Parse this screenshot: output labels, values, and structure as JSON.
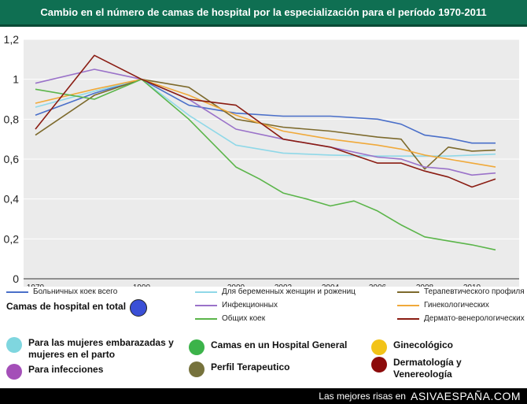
{
  "title": "Cambio en el número de camas de hospital por la especialización para el período 1970-2011",
  "chart_data": {
    "type": "line",
    "ylim": [
      0,
      1.2
    ],
    "xlim": [
      1969,
      2011
    ],
    "yticks": [
      "0",
      "0,2",
      "0,4",
      "0,6",
      "0,8",
      "1",
      "1,2"
    ],
    "ytick_values": [
      0,
      0.2,
      0.4,
      0.6,
      0.8,
      1.0,
      1.2
    ],
    "xticks": [
      {
        "value": 1970,
        "label": "1970"
      },
      {
        "value": 1990,
        "label": "1990"
      },
      {
        "value": 2000,
        "label": "2000"
      },
      {
        "value": 2002,
        "label": "2002"
      },
      {
        "value": 2004,
        "label": "2004"
      },
      {
        "value": 2006,
        "label": "2006"
      },
      {
        "value": 2008,
        "label": "2008"
      },
      {
        "value": 2010,
        "label": "2010"
      }
    ],
    "x_positions": {
      "1970": 1970,
      "1980": 1975,
      "1990": 1979,
      "1995": 1983,
      "2000": 1987,
      "2001": 1989,
      "2002": 1991,
      "2003": 1993,
      "2004": 1995,
      "2005": 1997,
      "2006": 1999,
      "2007": 2001,
      "2008": 2003,
      "2009": 2005,
      "2010": 2007,
      "2011": 2009
    },
    "series": [
      {
        "name": "Больничных коек всего",
        "color": "#4a6fc9",
        "x": [
          1970,
          1980,
          1990,
          1995,
          2000,
          2002,
          2004,
          2006,
          2007,
          2008,
          2009,
          2010,
          2011
        ],
        "y": [
          0.82,
          0.93,
          1.0,
          0.87,
          0.83,
          0.815,
          0.815,
          0.8,
          0.775,
          0.72,
          0.705,
          0.68,
          0.68
        ]
      },
      {
        "name": "Для беременных женщин и рожениц",
        "color": "#8fd8e8",
        "x": [
          1970,
          1980,
          1990,
          1995,
          2000,
          2002,
          2004,
          2006,
          2007,
          2008,
          2009,
          2010,
          2011
        ],
        "y": [
          0.86,
          0.94,
          1.0,
          0.82,
          0.67,
          0.63,
          0.62,
          0.615,
          0.615,
          0.615,
          0.615,
          0.62,
          0.625
        ]
      },
      {
        "name": "Терапевтического профиля",
        "color": "#7d6a2c",
        "x": [
          1970,
          1980,
          1990,
          1995,
          2000,
          2002,
          2004,
          2006,
          2007,
          2008,
          2009,
          2010,
          2011
        ],
        "y": [
          0.72,
          0.92,
          1.0,
          0.96,
          0.8,
          0.76,
          0.74,
          0.71,
          0.7,
          0.55,
          0.66,
          0.64,
          0.645
        ]
      },
      {
        "name": "Инфекционных",
        "color": "#9a72c9",
        "x": [
          1970,
          1980,
          1990,
          1995,
          2000,
          2002,
          2004,
          2006,
          2007,
          2008,
          2009,
          2010,
          2011
        ],
        "y": [
          0.98,
          1.05,
          1.0,
          0.9,
          0.75,
          0.7,
          0.66,
          0.61,
          0.6,
          0.56,
          0.55,
          0.52,
          0.53
        ]
      },
      {
        "name": "Гинекологических",
        "color": "#f0a93a",
        "x": [
          1970,
          1980,
          1990,
          1995,
          2000,
          2002,
          2004,
          2006,
          2007,
          2008,
          2009,
          2010,
          2011
        ],
        "y": [
          0.88,
          0.95,
          1.0,
          0.92,
          0.82,
          0.74,
          0.7,
          0.67,
          0.65,
          0.62,
          0.6,
          0.58,
          0.56
        ]
      },
      {
        "name": "Общих коек",
        "color": "#5bb54a",
        "x": [
          1970,
          1980,
          1990,
          1995,
          2000,
          2001,
          2002,
          2003,
          2004,
          2005,
          2006,
          2007,
          2008,
          2009,
          2010,
          2011
        ],
        "y": [
          0.95,
          0.9,
          1.0,
          0.8,
          0.56,
          0.5,
          0.43,
          0.4,
          0.365,
          0.39,
          0.34,
          0.27,
          0.21,
          0.19,
          0.17,
          0.145
        ]
      },
      {
        "name": "Дермато-венерологических",
        "color": "#8a1c12",
        "x": [
          1970,
          1980,
          1990,
          1995,
          2000,
          2002,
          2004,
          2006,
          2007,
          2008,
          2009,
          2010,
          2011
        ],
        "y": [
          0.75,
          1.12,
          1.0,
          0.9,
          0.87,
          0.7,
          0.66,
          0.58,
          0.58,
          0.54,
          0.51,
          0.46,
          0.5
        ]
      }
    ]
  },
  "total_legend": {
    "label": "Camas de hospital en total",
    "color": "#3a4fd6"
  },
  "spanish_legend": [
    {
      "label": "Para las mujeres embarazadas y mujeres en el parto",
      "color": "#7fd6df"
    },
    {
      "label": "Para infecciones",
      "color": "#a44fb8"
    },
    {
      "label": "Camas en un Hospital General",
      "color": "#3cb34a"
    },
    {
      "label": "Perfil Terapeutico",
      "color": "#76723c"
    },
    {
      "label": "Ginecológico",
      "color": "#f2c318"
    },
    {
      "label": "Dermatología y Venereología",
      "color": "#8c0b0b"
    }
  ],
  "banner": {
    "prefix": "Las mejores risas en",
    "brand": "ASIVAESPAÑA.COM"
  }
}
